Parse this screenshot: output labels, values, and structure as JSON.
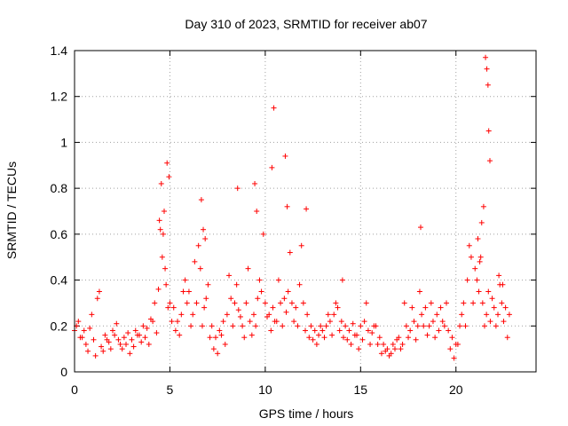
{
  "chart_data": {
    "type": "scatter",
    "title": "Day 310 of 2023, SRMTID for receiver ab07",
    "xlabel": "GPS time / hours",
    "ylabel": "SRMTID / TECUs",
    "xlim": [
      0,
      24.2
    ],
    "ylim": [
      0,
      1.4
    ],
    "xticks": [
      0,
      5,
      10,
      15,
      20
    ],
    "xtick_labels": [
      "0",
      "5",
      "10",
      "15",
      "20"
    ],
    "yticks": [
      0,
      0.2,
      0.4,
      0.6,
      0.8,
      1.0,
      1.2,
      1.4
    ],
    "ytick_labels": [
      "0",
      "0.2",
      "0.4",
      "0.6",
      "0.8",
      "1",
      "1.2",
      "1.4"
    ],
    "grid": true,
    "marker": "+",
    "color": "#ff0000",
    "series": [
      {
        "name": "SRMTID",
        "x": [
          0.0,
          0.2,
          0.4,
          0.6,
          0.8,
          1.0,
          1.2,
          1.4,
          1.6,
          1.8,
          2.0,
          2.2,
          2.4,
          2.6,
          2.8,
          3.0,
          3.2,
          3.4,
          3.6,
          3.8,
          4.0,
          4.2,
          4.4,
          4.6,
          4.8,
          5.0,
          5.2,
          5.4,
          5.6,
          5.8,
          6.0,
          6.2,
          6.4,
          6.6,
          6.8,
          7.0,
          7.2,
          7.4,
          7.6,
          7.8,
          8.0,
          8.2,
          8.4,
          8.6,
          8.8,
          9.0,
          9.2,
          9.4,
          9.6,
          9.8,
          10.0,
          10.2,
          10.4,
          10.6,
          10.8,
          11.0,
          11.2,
          11.4,
          11.6,
          11.8,
          12.0,
          12.2,
          12.4,
          12.6,
          12.8,
          13.0,
          13.2,
          13.4,
          13.6,
          13.8,
          14.0,
          14.2,
          14.4,
          14.6,
          14.8,
          15.0,
          15.2,
          15.4,
          15.6,
          15.8,
          16.0,
          16.2,
          16.4,
          16.6,
          16.8,
          17.0,
          17.2,
          17.4,
          17.6,
          17.8,
          18.0,
          18.2,
          18.4,
          18.6,
          18.8,
          19.0,
          19.2,
          19.4,
          19.6,
          19.8,
          20.0,
          20.2,
          20.4,
          20.6,
          20.8,
          21.0,
          21.2,
          21.4,
          21.6,
          21.8,
          22.0,
          22.2,
          22.4,
          22.6,
          22.8,
          0.1,
          0.3,
          0.5,
          0.7,
          0.9,
          1.1,
          1.3,
          1.5,
          1.7,
          1.9,
          2.1,
          2.3,
          2.5,
          2.7,
          2.9,
          3.1,
          3.3,
          3.5,
          3.7,
          3.9,
          4.1,
          4.3,
          4.5,
          4.7,
          4.9,
          5.1,
          5.3,
          5.5,
          5.7,
          5.9,
          6.1,
          6.3,
          6.5,
          6.7,
          6.9,
          7.1,
          7.3,
          7.5,
          7.7,
          7.9,
          8.1,
          8.3,
          8.5,
          8.7,
          8.9,
          9.1,
          9.3,
          9.5,
          9.7,
          9.9,
          10.1,
          10.3,
          10.5,
          10.7,
          10.9,
          11.1,
          11.3,
          11.5,
          11.7,
          11.9,
          12.1,
          12.3,
          12.5,
          12.7,
          12.9,
          13.1,
          13.3,
          13.5,
          13.7,
          13.9,
          14.1,
          14.3,
          14.5,
          14.7,
          14.9,
          15.1,
          15.3,
          15.5,
          15.7,
          15.9,
          16.1,
          16.3,
          16.5,
          16.7,
          16.9,
          17.1,
          17.3,
          17.5,
          17.7,
          17.9,
          18.1,
          18.3,
          18.5,
          18.7,
          18.9,
          19.1,
          19.3,
          19.5,
          19.7,
          19.9,
          20.1,
          20.3,
          20.5,
          20.7,
          20.9,
          21.1,
          21.3,
          21.5,
          21.7,
          21.9,
          22.1,
          22.3,
          22.5,
          22.7,
          4.45,
          4.55,
          4.65,
          4.75,
          4.85,
          4.95,
          6.65,
          6.75,
          6.85,
          8.55,
          9.45,
          9.55,
          10.35,
          10.45,
          11.05,
          11.15,
          12.15,
          14.05,
          18.15,
          21.15,
          21.25,
          21.35,
          21.45,
          21.55,
          21.62,
          21.68,
          21.72,
          21.78,
          22.25,
          22.45
        ],
        "y": [
          0.18,
          0.22,
          0.15,
          0.12,
          0.19,
          0.14,
          0.32,
          0.11,
          0.16,
          0.13,
          0.18,
          0.21,
          0.12,
          0.15,
          0.17,
          0.14,
          0.18,
          0.16,
          0.2,
          0.19,
          0.23,
          0.3,
          0.36,
          0.5,
          0.38,
          0.3,
          0.28,
          0.22,
          0.25,
          0.4,
          0.35,
          0.25,
          0.3,
          0.45,
          0.28,
          0.38,
          0.2,
          0.15,
          0.18,
          0.22,
          0.25,
          0.32,
          0.3,
          0.27,
          0.2,
          0.3,
          0.22,
          0.25,
          0.32,
          0.35,
          0.3,
          0.25,
          0.28,
          0.22,
          0.3,
          0.32,
          0.35,
          0.3,
          0.28,
          0.38,
          0.3,
          0.25,
          0.2,
          0.18,
          0.16,
          0.18,
          0.2,
          0.22,
          0.25,
          0.28,
          0.22,
          0.2,
          0.18,
          0.21,
          0.16,
          0.2,
          0.22,
          0.18,
          0.17,
          0.2,
          0.15,
          0.12,
          0.1,
          0.08,
          0.1,
          0.15,
          0.12,
          0.2,
          0.18,
          0.22,
          0.2,
          0.25,
          0.28,
          0.2,
          0.22,
          0.25,
          0.28,
          0.2,
          0.18,
          0.15,
          0.12,
          0.2,
          0.3,
          0.4,
          0.5,
          0.45,
          0.35,
          0.3,
          0.25,
          0.22,
          0.28,
          0.25,
          0.3,
          0.28,
          0.25,
          0.2,
          0.15,
          0.18,
          0.09,
          0.25,
          0.07,
          0.35,
          0.09,
          0.14,
          0.1,
          0.16,
          0.14,
          0.1,
          0.12,
          0.08,
          0.11,
          0.16,
          0.13,
          0.15,
          0.12,
          0.22,
          0.17,
          0.62,
          0.7,
          0.28,
          0.22,
          0.18,
          0.16,
          0.35,
          0.3,
          0.2,
          0.48,
          0.55,
          0.2,
          0.32,
          0.15,
          0.1,
          0.08,
          0.16,
          0.12,
          0.42,
          0.2,
          0.38,
          0.24,
          0.15,
          0.45,
          0.16,
          0.2,
          0.4,
          0.6,
          0.24,
          0.18,
          0.22,
          0.4,
          0.2,
          0.26,
          0.52,
          0.22,
          0.2,
          0.55,
          0.18,
          0.15,
          0.14,
          0.12,
          0.2,
          0.15,
          0.25,
          0.16,
          0.3,
          0.18,
          0.15,
          0.14,
          0.12,
          0.16,
          0.1,
          0.14,
          0.3,
          0.12,
          0.2,
          0.12,
          0.08,
          0.09,
          0.07,
          0.12,
          0.14,
          0.1,
          0.3,
          0.15,
          0.28,
          0.14,
          0.35,
          0.2,
          0.16,
          0.3,
          0.15,
          0.18,
          0.22,
          0.3,
          0.1,
          0.06,
          0.12,
          0.25,
          0.2,
          0.55,
          0.3,
          0.4,
          0.5,
          0.2,
          0.35,
          0.32,
          0.2,
          0.38,
          0.22,
          0.15,
          0.66,
          0.82,
          0.6,
          0.45,
          0.91,
          0.85,
          0.75,
          0.62,
          0.58,
          0.8,
          0.82,
          0.7,
          0.89,
          1.15,
          0.94,
          0.72,
          0.71,
          0.4,
          0.63,
          0.58,
          0.48,
          0.65,
          0.72,
          1.37,
          1.32,
          1.25,
          1.05,
          0.92,
          0.42,
          0.38
        ]
      }
    ]
  }
}
